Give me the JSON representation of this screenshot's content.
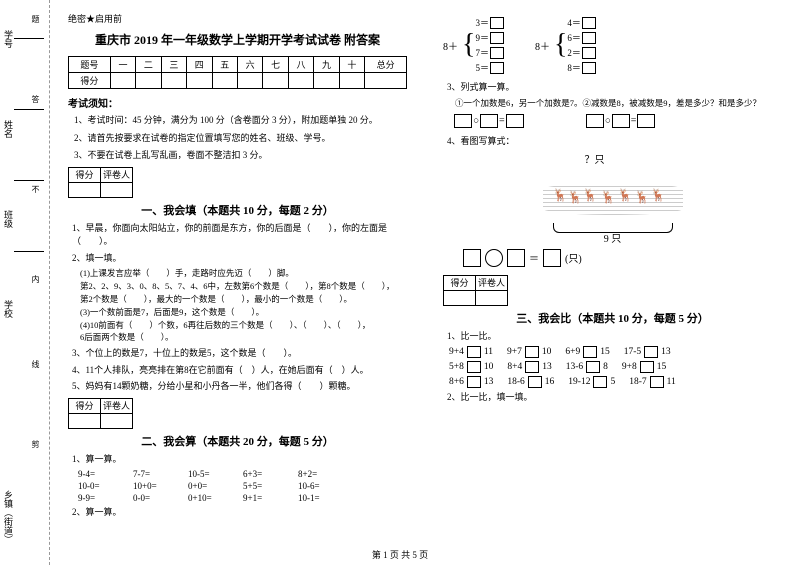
{
  "secret": "绝密★启用前",
  "title": "重庆市 2019 年一年级数学上学期开学考试试卷 附答案",
  "binding": {
    "l1": "学号",
    "l2": "姓名",
    "l3": "班级",
    "l4": "学校",
    "l5": "乡镇（街道）",
    "cut": "剪",
    "inner": "内",
    "no": "不",
    "ans": "答",
    "topic": "题",
    "line": "线"
  },
  "score": {
    "header": [
      "题号",
      "一",
      "二",
      "三",
      "四",
      "五",
      "六",
      "七",
      "八",
      "九",
      "十",
      "总分"
    ],
    "row": "得分"
  },
  "notice": {
    "h": "考试须知：",
    "i1": "1、考试时间：45 分钟，满分为 100 分（含卷面分 3 分），附加题单独 20 分。",
    "i2": "2、请首先按要求在试卷的指定位置填写您的姓名、班级、学号。",
    "i3": "3、不要在试卷上乱写乱画，卷面不整洁扣 3 分。"
  },
  "mark": {
    "c1": "得分",
    "c2": "评卷人"
  },
  "sec1": {
    "title": "一、我会填（本题共 10 分，每题 2 分）",
    "q1": "1、早晨，你面向太阳站立，你的前面是东方，你的后面是（　　），你的左面是（　　）。",
    "q2": "2、填一填。",
    "q2a": "(1)上课发言应举（　　）手，走路时应先迈（　　）脚。",
    "q2b": "第2、2、9、3、0、8、5、7、4、6中，左数第6个数是（　　），第8个数是（　　），",
    "q2c": "第2个数是（　　），最大的一个数是（　　），最小的一个数是（　　）。",
    "q2d": "(3)一个数前面是7，后面是9，这个数是（　　）。",
    "q2e": "(4)10前面有（　　）个数，6再往后数的三个数是（　　）、（　　）、（　　），",
    "q2f": "6后面两个数是（　　）。",
    "q3": "3、个位上的数是7，十位上的数是5，这个数是（　　）。",
    "q4": "4、11个人排队，亮亮排在第8在它前面有（　）人，在她后面有（　）人。",
    "q5": "5、妈妈有14颗奶糖，分给小星和小丹各一半，他们各得（　　）颗糖。"
  },
  "sec2": {
    "title": "二、我会算（本题共 20 分，每题 5 分）",
    "q1": "1、算一算。",
    "r1": [
      "9-4=",
      "7-7=",
      "10-5=",
      "6+3=",
      "8+2="
    ],
    "r2": [
      "10-0=",
      "10+0=",
      "0+0=",
      "5+5=",
      "10-6="
    ],
    "r3": [
      "9-9=",
      "0-0=",
      "0+10=",
      "9+1=",
      "10-1="
    ],
    "q2": "2、算一算。"
  },
  "right": {
    "b1": {
      "lead": "8＋",
      "a": "3＝",
      "b": "9＝",
      "c": "7＝",
      "d": "5＝"
    },
    "b2": {
      "lead": "8＋",
      "a": "4＝",
      "b": "6＝",
      "c": "2＝",
      "d": "8＝"
    },
    "q3": "3、列式算一算。",
    "q3a": "①一个加数是6，另一个加数是7。②减数是8，被减数是9，差是多少？和是多少？",
    "eq1": "□○□=□",
    "eq2": "□○□=□",
    "q4": "4、看图写算式：",
    "illus": {
      "only": "？只",
      "nine": "9 只"
    },
    "shape_eq": "＝　　（只）"
  },
  "sec3": {
    "title": "三、我会比（本题共 10 分，每题 5 分）",
    "q1": "1、比一比。",
    "rows": [
      [
        {
          "l": "9+4",
          "r": "11"
        },
        {
          "l": "9+7",
          "r": "10"
        },
        {
          "l": "6+9",
          "r": "15"
        },
        {
          "l": "17-5",
          "r": "13"
        }
      ],
      [
        {
          "l": "5+8",
          "r": "10"
        },
        {
          "l": "8+4",
          "r": "13"
        },
        {
          "l": "13-6",
          "r": "8"
        },
        {
          "l": "9+8",
          "r": "15"
        }
      ],
      [
        {
          "l": "8+6",
          "r": "13"
        },
        {
          "l": "18-6",
          "r": "16"
        },
        {
          "l": "19-12",
          "r": "5"
        },
        {
          "l": "18-7",
          "r": "11"
        }
      ]
    ],
    "q2": "2、比一比，填一填。"
  },
  "footer": "第 1 页 共 5 页"
}
